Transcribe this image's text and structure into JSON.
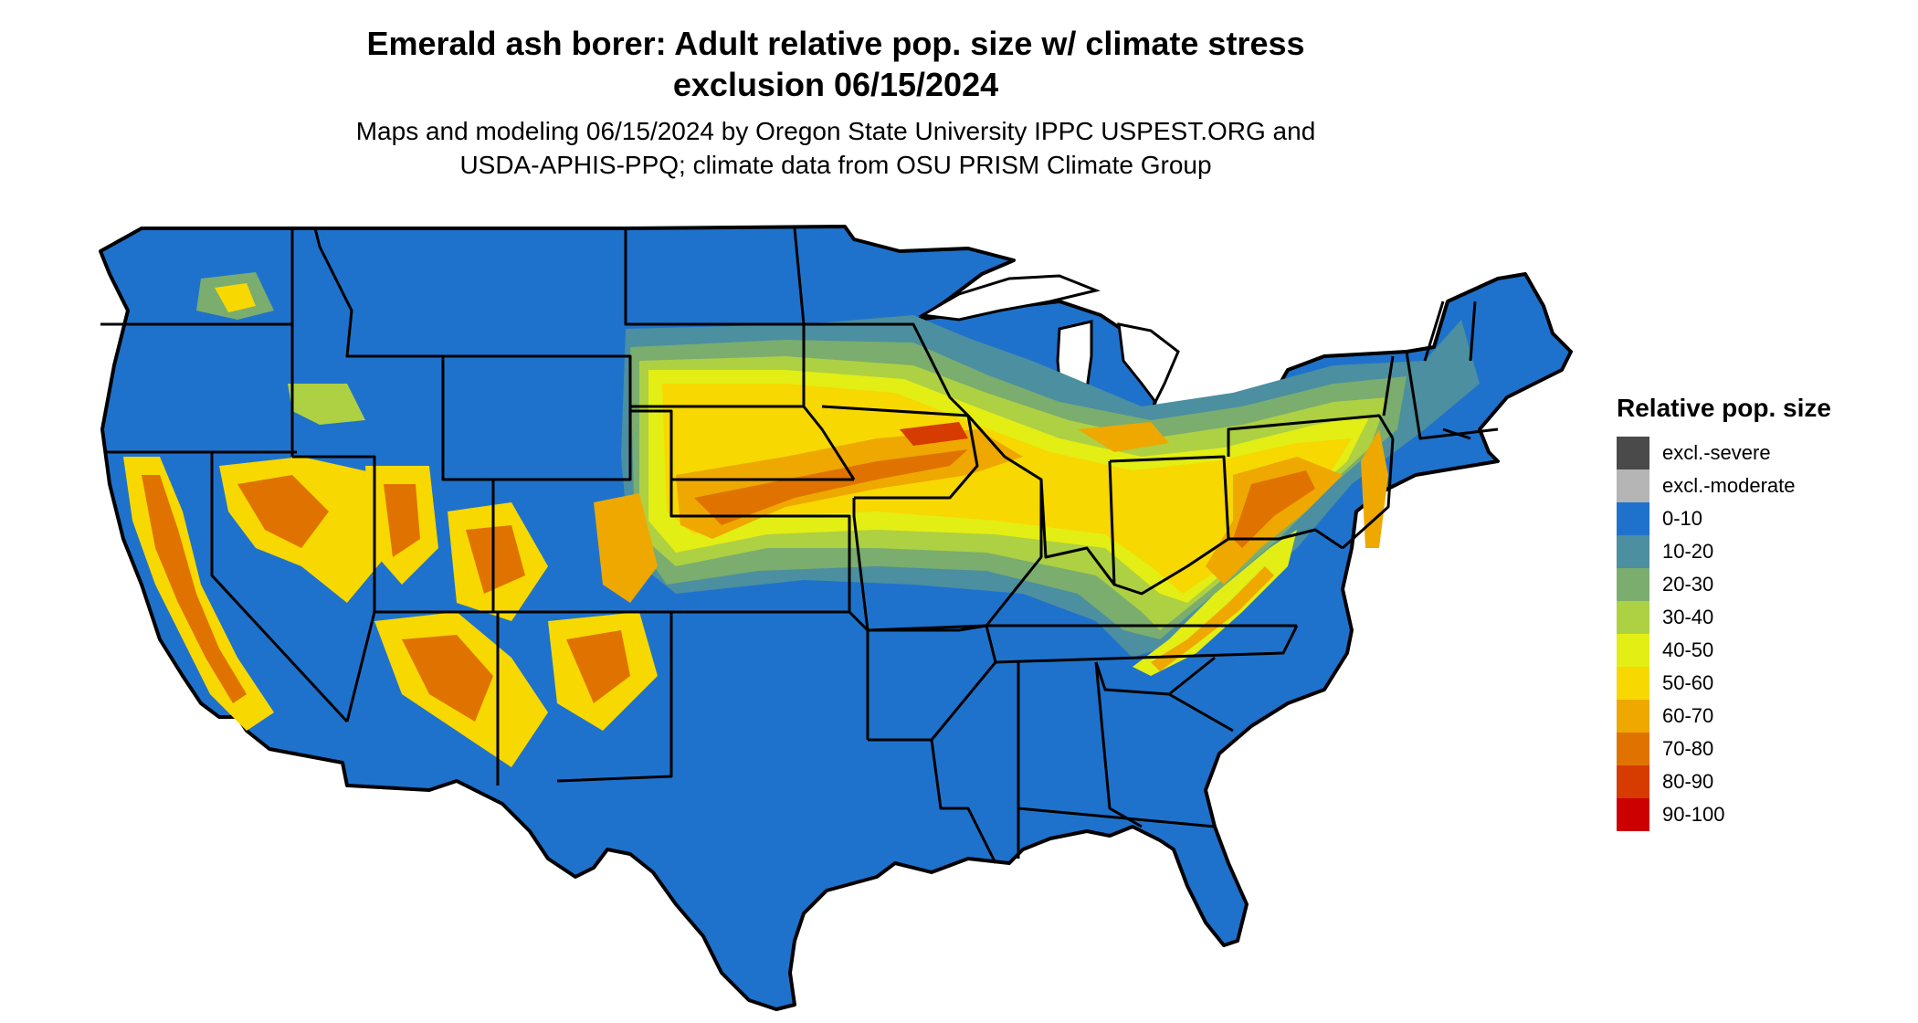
{
  "title_line1": "Emerald ash borer: Adult relative pop. size w/ climate stress",
  "title_line2": "exclusion 06/15/2024",
  "subtitle_line1": "Maps and modeling 06/15/2024 by Oregon State University IPPC USPEST.ORG and",
  "subtitle_line2": "USDA-APHIS-PPQ; climate data from OSU PRISM Climate Group",
  "legend": {
    "title": "Relative pop. size",
    "items": [
      {
        "label": "excl.-severe",
        "color": "#4a4a4a"
      },
      {
        "label": "excl.-moderate",
        "color": "#b5b5b5"
      },
      {
        "label": "0-10",
        "color": "#1f72cc"
      },
      {
        "label": "10-20",
        "color": "#4b8fa0"
      },
      {
        "label": "20-30",
        "color": "#7aad6e"
      },
      {
        "label": "30-40",
        "color": "#aed043"
      },
      {
        "label": "40-50",
        "color": "#e3ee14"
      },
      {
        "label": "50-60",
        "color": "#f7d800"
      },
      {
        "label": "60-70",
        "color": "#eea800"
      },
      {
        "label": "70-80",
        "color": "#e07300"
      },
      {
        "label": "80-90",
        "color": "#d63b00"
      },
      {
        "label": "90-100",
        "color": "#cc0000"
      }
    ]
  }
}
